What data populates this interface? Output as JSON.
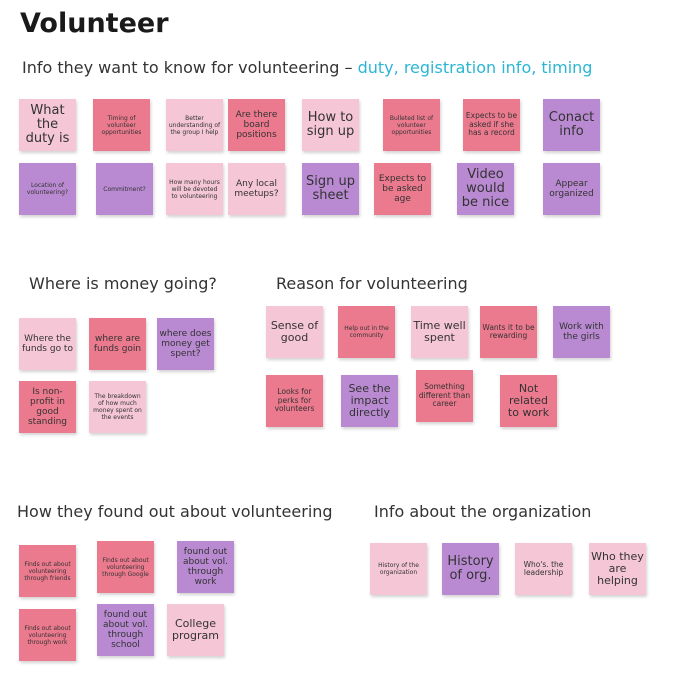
{
  "title": "Volunteer",
  "subtitle": {
    "prefix": "Info they want to know for volunteering – ",
    "highlight": "duty, registration info, timing"
  },
  "sections": {
    "money": "Where is money going?",
    "reason": "Reason for volunteering",
    "found": "How they found out about volunteering",
    "org": "Info about the organization"
  },
  "notes": {
    "info": [
      "What the duty is",
      "Timing of volunteer opportunities",
      "Better understanding of the group I help",
      "Are there board positions",
      "How to sign up",
      "Bulleted list of volunteer opportunities",
      "Expects to be asked if she has a record",
      "Conact info",
      "Location of volunteering?",
      "Commitment?",
      "How many hours will be devoted to volunteering",
      "Any local meetups?",
      "Sign up sheet",
      "Expects to be asked age",
      "Video would be nice",
      "Appear organized"
    ],
    "money": [
      "Where the funds go to",
      "where are funds goin",
      "where does money get spent?",
      "Is non-profit in good standing",
      "The breakdown of how much money spent on the events"
    ],
    "reason": [
      "Sense of good",
      "Help out in the community",
      "Time well spent",
      "Wants it to be rewarding",
      "Work with the girls",
      "Looks for perks for volunteers",
      "See the impact directly",
      "Something different than career",
      "Not related to work"
    ],
    "found": [
      "Finds out about volunteering through friends",
      "Finds out about volunteering through Google",
      "found out about vol. through work",
      "Finds out about volunteering through work",
      "found out about vol. through school",
      "College program"
    ],
    "org": [
      "History of the organization",
      "History of org.",
      "Who's. the leadership",
      "Who they are helping"
    ]
  },
  "colors": {
    "pink": "#f5c6d6",
    "rose": "#ec7a8e",
    "purple": "#b98ad1",
    "highlight": "#2bb6d4"
  }
}
